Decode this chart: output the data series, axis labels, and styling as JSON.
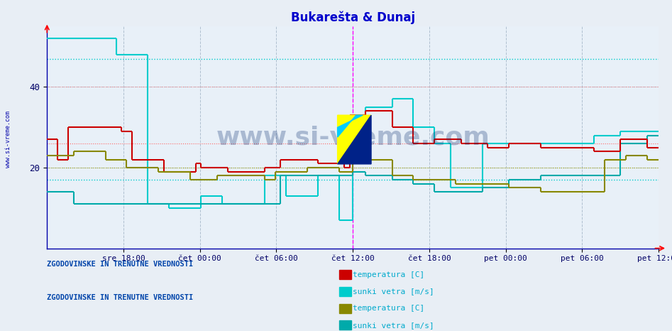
{
  "title": "Bukarešta & Dunaj",
  "title_color": "#0000cc",
  "bg_color": "#e8eef5",
  "plot_bg_color": "#e8f0f8",
  "grid_color": "#b0c0d0",
  "figsize": [
    9.47,
    4.66
  ],
  "dpi": 100,
  "ylim": [
    0,
    55
  ],
  "xlim": [
    0,
    576
  ],
  "yticks": [
    20,
    40
  ],
  "xtick_labels": [
    "sre 18:00",
    "čet 00:00",
    "čet 06:00",
    "čet 12:00",
    "čet 18:00",
    "pet 00:00",
    "pet 06:00",
    "pet 12:00"
  ],
  "xtick_positions": [
    72,
    144,
    216,
    288,
    360,
    432,
    504,
    576
  ],
  "vline_x": 288,
  "vline_color": "#ff00ff",
  "hlines": [
    {
      "y": 47,
      "color": "#00cccc",
      "lw": 1.0
    },
    {
      "y": 40,
      "color": "#ff8888",
      "lw": 0.8
    },
    {
      "y": 26,
      "color": "#ff6666",
      "lw": 0.8
    },
    {
      "y": 20,
      "color": "#aaaa00",
      "lw": 0.8
    },
    {
      "y": 17,
      "color": "#00cccc",
      "lw": 1.0
    }
  ],
  "temp_buk_color": "#cc0000",
  "sunki_buk_color": "#00cccc",
  "temp_dun_color": "#888800",
  "sunki_dun_color": "#00aaaa",
  "legend1_title": "ZGODOVINSKE IN TRENUTNE VREDNOSTI",
  "legend2_title": "ZGODOVINSKE IN TRENUTNE VREDNOSTI",
  "legend1_items": [
    {
      "label": "temperatura [C]",
      "color": "#cc0000"
    },
    {
      "label": "sunki vetra [m/s]",
      "color": "#00cccc"
    }
  ],
  "legend2_items": [
    {
      "label": "temperatura [C]",
      "color": "#888800"
    },
    {
      "label": "sunki vetra [m/s]",
      "color": "#00aaaa"
    }
  ],
  "temp_buk": [
    [
      0,
      27
    ],
    [
      10,
      22
    ],
    [
      20,
      30
    ],
    [
      50,
      30
    ],
    [
      70,
      29
    ],
    [
      80,
      22
    ],
    [
      100,
      22
    ],
    [
      110,
      19
    ],
    [
      130,
      19
    ],
    [
      140,
      21
    ],
    [
      145,
      20
    ],
    [
      165,
      20
    ],
    [
      170,
      19
    ],
    [
      200,
      19
    ],
    [
      205,
      20
    ],
    [
      215,
      20
    ],
    [
      220,
      22
    ],
    [
      250,
      22
    ],
    [
      255,
      21
    ],
    [
      270,
      21
    ],
    [
      280,
      20
    ],
    [
      285,
      33
    ],
    [
      295,
      33
    ],
    [
      300,
      34
    ],
    [
      320,
      34
    ],
    [
      325,
      30
    ],
    [
      340,
      30
    ],
    [
      345,
      26
    ],
    [
      360,
      26
    ],
    [
      365,
      27
    ],
    [
      385,
      27
    ],
    [
      390,
      26
    ],
    [
      410,
      26
    ],
    [
      415,
      25
    ],
    [
      430,
      25
    ],
    [
      435,
      26
    ],
    [
      460,
      26
    ],
    [
      465,
      25
    ],
    [
      490,
      25
    ],
    [
      495,
      25
    ],
    [
      510,
      25
    ],
    [
      515,
      24
    ],
    [
      535,
      24
    ],
    [
      540,
      27
    ],
    [
      560,
      27
    ],
    [
      565,
      25
    ],
    [
      576,
      25
    ]
  ],
  "sunki_buk": [
    [
      0,
      52
    ],
    [
      60,
      52
    ],
    [
      65,
      48
    ],
    [
      90,
      48
    ],
    [
      95,
      11
    ],
    [
      110,
      11
    ],
    [
      115,
      10
    ],
    [
      140,
      10
    ],
    [
      145,
      13
    ],
    [
      160,
      13
    ],
    [
      165,
      11
    ],
    [
      200,
      11
    ],
    [
      205,
      18
    ],
    [
      220,
      18
    ],
    [
      225,
      13
    ],
    [
      250,
      13
    ],
    [
      255,
      18
    ],
    [
      270,
      18
    ],
    [
      275,
      7
    ],
    [
      285,
      7
    ],
    [
      288,
      28
    ],
    [
      295,
      28
    ],
    [
      300,
      35
    ],
    [
      320,
      35
    ],
    [
      325,
      37
    ],
    [
      340,
      37
    ],
    [
      345,
      30
    ],
    [
      360,
      30
    ],
    [
      365,
      26
    ],
    [
      375,
      26
    ],
    [
      380,
      15
    ],
    [
      405,
      15
    ],
    [
      410,
      26
    ],
    [
      430,
      26
    ],
    [
      435,
      26
    ],
    [
      450,
      26
    ],
    [
      455,
      26
    ],
    [
      490,
      26
    ],
    [
      495,
      26
    ],
    [
      510,
      26
    ],
    [
      515,
      28
    ],
    [
      535,
      28
    ],
    [
      540,
      29
    ],
    [
      576,
      29
    ]
  ],
  "temp_dun": [
    [
      0,
      23
    ],
    [
      20,
      23
    ],
    [
      25,
      24
    ],
    [
      50,
      24
    ],
    [
      55,
      22
    ],
    [
      70,
      22
    ],
    [
      75,
      20
    ],
    [
      100,
      20
    ],
    [
      105,
      19
    ],
    [
      130,
      19
    ],
    [
      135,
      17
    ],
    [
      155,
      17
    ],
    [
      160,
      18
    ],
    [
      200,
      18
    ],
    [
      205,
      17
    ],
    [
      210,
      17
    ],
    [
      215,
      19
    ],
    [
      240,
      19
    ],
    [
      245,
      20
    ],
    [
      270,
      20
    ],
    [
      275,
      19
    ],
    [
      285,
      19
    ],
    [
      288,
      22
    ],
    [
      295,
      22
    ],
    [
      300,
      22
    ],
    [
      320,
      22
    ],
    [
      325,
      18
    ],
    [
      340,
      18
    ],
    [
      345,
      17
    ],
    [
      360,
      17
    ],
    [
      365,
      17
    ],
    [
      380,
      17
    ],
    [
      385,
      16
    ],
    [
      405,
      16
    ],
    [
      410,
      16
    ],
    [
      430,
      16
    ],
    [
      435,
      15
    ],
    [
      460,
      15
    ],
    [
      465,
      14
    ],
    [
      480,
      14
    ],
    [
      485,
      14
    ],
    [
      500,
      14
    ],
    [
      505,
      14
    ],
    [
      520,
      14
    ],
    [
      525,
      22
    ],
    [
      540,
      22
    ],
    [
      545,
      23
    ],
    [
      560,
      23
    ],
    [
      565,
      22
    ],
    [
      576,
      22
    ]
  ],
  "sunki_dun": [
    [
      0,
      14
    ],
    [
      20,
      14
    ],
    [
      25,
      11
    ],
    [
      50,
      11
    ],
    [
      55,
      11
    ],
    [
      70,
      11
    ],
    [
      75,
      11
    ],
    [
      100,
      11
    ],
    [
      105,
      11
    ],
    [
      130,
      11
    ],
    [
      135,
      11
    ],
    [
      200,
      11
    ],
    [
      205,
      11
    ],
    [
      215,
      11
    ],
    [
      220,
      18
    ],
    [
      240,
      18
    ],
    [
      245,
      18
    ],
    [
      285,
      18
    ],
    [
      288,
      19
    ],
    [
      295,
      19
    ],
    [
      300,
      18
    ],
    [
      320,
      18
    ],
    [
      325,
      17
    ],
    [
      340,
      17
    ],
    [
      345,
      16
    ],
    [
      360,
      16
    ],
    [
      365,
      14
    ],
    [
      380,
      14
    ],
    [
      385,
      14
    ],
    [
      405,
      14
    ],
    [
      410,
      15
    ],
    [
      430,
      15
    ],
    [
      435,
      17
    ],
    [
      460,
      17
    ],
    [
      465,
      18
    ],
    [
      490,
      18
    ],
    [
      495,
      18
    ],
    [
      510,
      18
    ],
    [
      515,
      18
    ],
    [
      535,
      18
    ],
    [
      540,
      26
    ],
    [
      560,
      26
    ],
    [
      565,
      28
    ],
    [
      576,
      28
    ]
  ],
  "watermark_text": "www.si-vreme.com",
  "watermark_fontsize": 26,
  "watermark_color": "#1a3a7a",
  "watermark_alpha": 0.3,
  "logo_yellow": "#ffff00",
  "logo_blue": "#002288",
  "logo_cyan": "#00ccff",
  "axis_color": "#0000aa",
  "tick_color": "#000066",
  "left_label": "www.si-vreme.com",
  "left_label_color": "#0000aa",
  "legend_title_color": "#0044aa",
  "legend_text_color": "#00aacc"
}
